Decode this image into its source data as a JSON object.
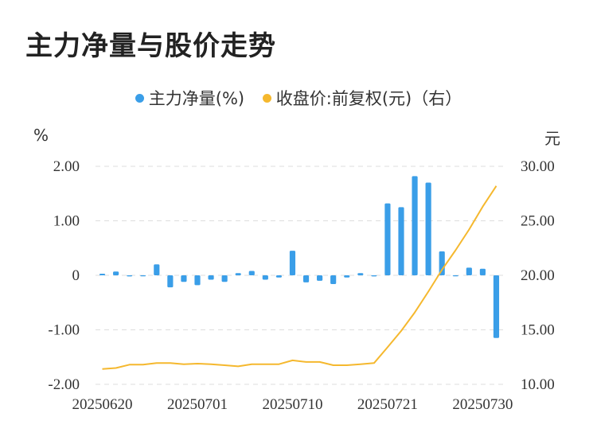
{
  "chart_data": {
    "type": "bar+line",
    "title": "主力净量与股价走势",
    "legend": [
      {
        "label": "主力净量(%)",
        "color": "#3a9ee8"
      },
      {
        "label": "收盘价:前复权(元)（右）",
        "color": "#f5b82e"
      }
    ],
    "left_unit": "%",
    "right_unit": "元",
    "left_axis": {
      "min": -2,
      "max": 2,
      "ticks": [
        2,
        1,
        0,
        -1,
        -2
      ],
      "tick_labels": [
        "2.00",
        "1.00",
        "0",
        "-1.00",
        "-2.00"
      ]
    },
    "right_axis": {
      "min": 10,
      "max": 30,
      "ticks": [
        30,
        25,
        20,
        15,
        10
      ],
      "tick_labels": [
        "30.00",
        "25.00",
        "20.00",
        "15.00",
        "10.00"
      ]
    },
    "x_tick_labels": [
      {
        "label": "20250620",
        "index": 0
      },
      {
        "label": "20250701",
        "index": 7
      },
      {
        "label": "20250710",
        "index": 14
      },
      {
        "label": "20250721",
        "index": 21
      },
      {
        "label": "20250730",
        "index": 28
      }
    ],
    "bars": [
      0.03,
      0.07,
      -0.02,
      -0.01,
      0.2,
      -0.22,
      -0.12,
      -0.18,
      -0.08,
      -0.12,
      0.04,
      0.08,
      -0.08,
      -0.04,
      0.45,
      -0.13,
      -0.1,
      -0.16,
      -0.04,
      0.04,
      -0.02,
      1.32,
      1.25,
      1.82,
      1.7,
      0.44,
      -0.01,
      0.14,
      0.12,
      -1.15
    ],
    "line": [
      11.4,
      11.5,
      11.8,
      11.8,
      11.95,
      11.95,
      11.85,
      11.9,
      11.85,
      11.75,
      11.65,
      11.85,
      11.85,
      11.85,
      12.2,
      12.05,
      12.05,
      11.75,
      11.75,
      11.85,
      11.95,
      13.4,
      14.9,
      16.6,
      18.5,
      20.5,
      22.3,
      24.2,
      26.3,
      28.2
    ]
  }
}
